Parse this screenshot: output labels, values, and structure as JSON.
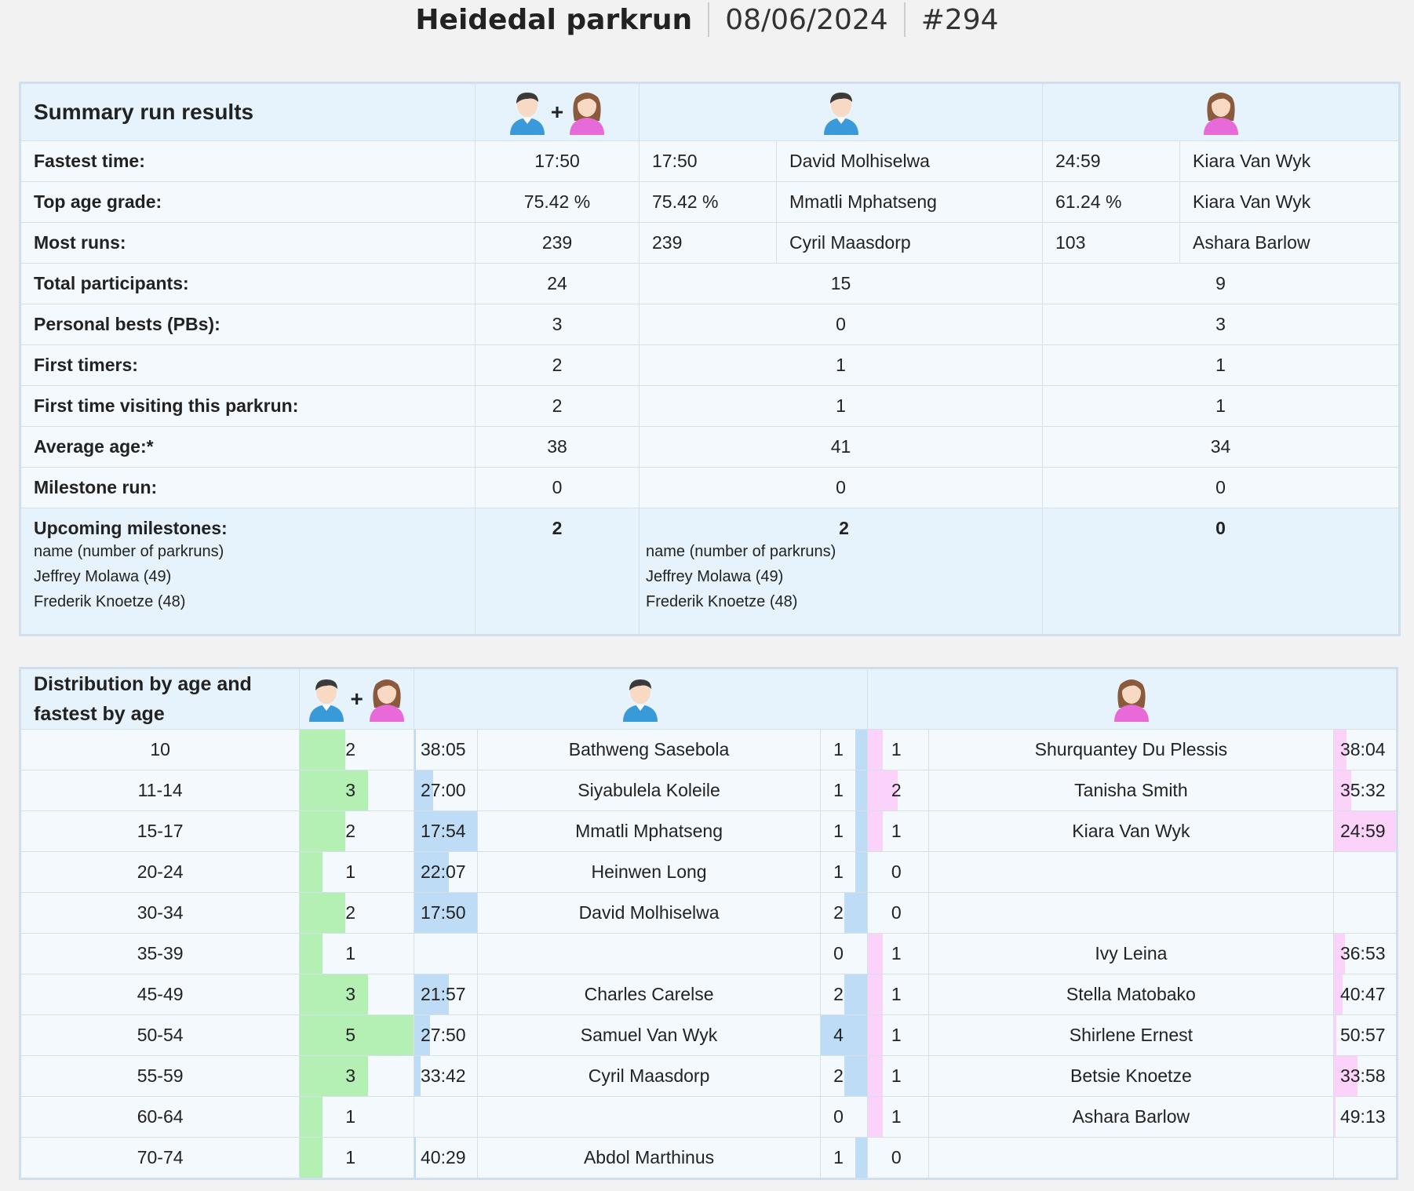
{
  "header": {
    "event": "Heidedal parkrun",
    "date": "08/06/2024",
    "run_no": "#294"
  },
  "summary": {
    "title": "Summary run results",
    "plus": "+",
    "rows": [
      {
        "label": "Fastest time:",
        "all": "17:50",
        "m_val": "17:50",
        "m_name": "David Molhiselwa",
        "f_val": "24:59",
        "f_name": "Kiara Van Wyk"
      },
      {
        "label": "Top age grade:",
        "all": "75.42 %",
        "m_val": "75.42 %",
        "m_name": "Mmatli Mphatseng",
        "f_val": "61.24 %",
        "f_name": "Kiara Van Wyk"
      },
      {
        "label": "Most runs:",
        "all": "239",
        "m_val": "239",
        "m_name": "Cyril Maasdorp",
        "f_val": "103",
        "f_name": "Ashara Barlow"
      }
    ],
    "simple_rows": [
      {
        "label": "Total participants:",
        "all": "24",
        "m": "15",
        "f": "9"
      },
      {
        "label": "Personal bests (PBs):",
        "all": "3",
        "m": "0",
        "f": "3"
      },
      {
        "label": "First timers:",
        "all": "2",
        "m": "1",
        "f": "1"
      },
      {
        "label": "First time visiting this parkrun:",
        "all": "2",
        "m": "1",
        "f": "1"
      },
      {
        "label": "Average age:*",
        "all": "38",
        "m": "41",
        "f": "34"
      },
      {
        "label": "Milestone run:",
        "all": "0",
        "m": "0",
        "f": "0"
      }
    ],
    "upcoming": {
      "label": "Upcoming milestones:",
      "all": "2",
      "m": "2",
      "f": "0",
      "sub": "name (number of parkruns)",
      "names": [
        "Jeffrey Molawa (49)",
        "Frederik Knoetze (48)"
      ]
    }
  },
  "distribution": {
    "title": "Distribution by age and fastest by age",
    "plus": "+",
    "rows": [
      {
        "age": "10",
        "total": "2",
        "total_frac": 0.4,
        "m_time": "38:05",
        "m_time_frac": 0.03,
        "m_name": "Bathweng Sasebola",
        "m_count": "1",
        "m_count_frac": 0.25,
        "f_count": "1",
        "f_count_frac": 0.25,
        "f_name": "Shurquantey Du Plessis",
        "f_time": "38:04",
        "f_time_frac": 0.2
      },
      {
        "age": "11-14",
        "total": "3",
        "total_frac": 0.6,
        "m_time": "27:00",
        "m_time_frac": 0.3,
        "m_name": "Siyabulela Koleile",
        "m_count": "1",
        "m_count_frac": 0.25,
        "f_count": "2",
        "f_count_frac": 0.5,
        "f_name": "Tanisha Smith",
        "f_time": "35:32",
        "f_time_frac": 0.28
      },
      {
        "age": "15-17",
        "total": "2",
        "total_frac": 0.4,
        "m_time": "17:54",
        "m_time_frac": 1.0,
        "m_name": "Mmatli Mphatseng",
        "m_count": "1",
        "m_count_frac": 0.25,
        "f_count": "1",
        "f_count_frac": 0.25,
        "f_name": "Kiara Van Wyk",
        "f_time": "24:59",
        "f_time_frac": 1.0
      },
      {
        "age": "20-24",
        "total": "1",
        "total_frac": 0.2,
        "m_time": "22:07",
        "m_time_frac": 0.55,
        "m_name": "Heinwen Long",
        "m_count": "1",
        "m_count_frac": 0.25,
        "f_count": "0",
        "f_count_frac": 0,
        "f_name": "",
        "f_time": "",
        "f_time_frac": 0
      },
      {
        "age": "30-34",
        "total": "2",
        "total_frac": 0.4,
        "m_time": "17:50",
        "m_time_frac": 1.0,
        "m_name": "David Molhiselwa",
        "m_count": "2",
        "m_count_frac": 0.5,
        "f_count": "0",
        "f_count_frac": 0,
        "f_name": "",
        "f_time": "",
        "f_time_frac": 0
      },
      {
        "age": "35-39",
        "total": "1",
        "total_frac": 0.2,
        "m_time": "",
        "m_time_frac": 0,
        "m_name": "",
        "m_count": "0",
        "m_count_frac": 0,
        "f_count": "1",
        "f_count_frac": 0.25,
        "f_name": "Ivy Leina",
        "f_time": "36:53",
        "f_time_frac": 0.18
      },
      {
        "age": "45-49",
        "total": "3",
        "total_frac": 0.6,
        "m_time": "21:57",
        "m_time_frac": 0.55,
        "m_name": "Charles Carelse",
        "m_count": "2",
        "m_count_frac": 0.5,
        "f_count": "1",
        "f_count_frac": 0.25,
        "f_name": "Stella Matobako",
        "f_time": "40:47",
        "f_time_frac": 0.14
      },
      {
        "age": "50-54",
        "total": "5",
        "total_frac": 1.0,
        "m_time": "27:50",
        "m_time_frac": 0.25,
        "m_name": "Samuel Van Wyk",
        "m_count": "4",
        "m_count_frac": 1.0,
        "f_count": "1",
        "f_count_frac": 0.25,
        "f_name": "Shirlene Ernest",
        "f_time": "50:57",
        "f_time_frac": 0.04
      },
      {
        "age": "55-59",
        "total": "3",
        "total_frac": 0.6,
        "m_time": "33:42",
        "m_time_frac": 0.1,
        "m_name": "Cyril Maasdorp",
        "m_count": "2",
        "m_count_frac": 0.5,
        "f_count": "1",
        "f_count_frac": 0.25,
        "f_name": "Betsie Knoetze",
        "f_time": "33:58",
        "f_time_frac": 0.38
      },
      {
        "age": "60-64",
        "total": "1",
        "total_frac": 0.2,
        "m_time": "",
        "m_time_frac": 0,
        "m_name": "",
        "m_count": "0",
        "m_count_frac": 0,
        "f_count": "1",
        "f_count_frac": 0.25,
        "f_name": "Ashara Barlow",
        "f_time": "49:13",
        "f_time_frac": 0.03
      },
      {
        "age": "70-74",
        "total": "1",
        "total_frac": 0.2,
        "m_time": "40:29",
        "m_time_frac": 0.03,
        "m_name": "Abdol Marthinus",
        "m_count": "1",
        "m_count_frac": 0.25,
        "f_count": "0",
        "f_count_frac": 0,
        "f_name": "",
        "f_time": "",
        "f_time_frac": 0
      }
    ]
  },
  "colors": {
    "male": "#3a9ad9",
    "female": "#e86ad8",
    "green_bar": "#b4f0b4",
    "blue_bar": "#bedcf5",
    "pink_bar": "#fad2fa"
  },
  "icons": {
    "male": "male-avatar-icon",
    "female": "female-avatar-icon"
  }
}
